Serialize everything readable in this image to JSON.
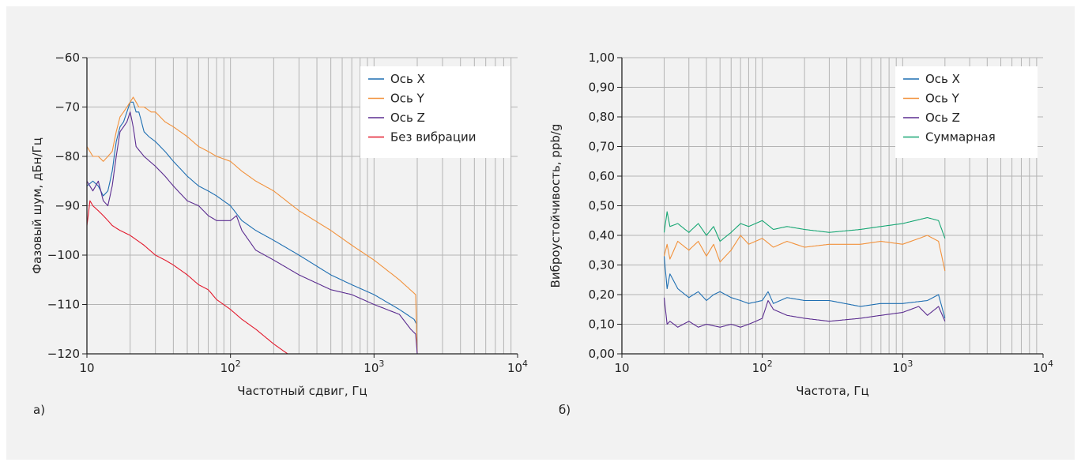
{
  "colors": {
    "x": "#1f6fb2",
    "y": "#f2923c",
    "z": "#5b2d90",
    "none": "#e31b2e",
    "sum": "#18a774",
    "grid": "#b4b4b4",
    "axis": "#222222"
  },
  "chart_data": [
    {
      "type": "line",
      "panel_label": "а)",
      "xlabel": "Частотный сдвиг, Гц",
      "ylabel": "Фазовый шум, дБн/Гц",
      "xscale": "log",
      "xlim": [
        10,
        10000
      ],
      "ylim": [
        -120,
        -60
      ],
      "xticks": [
        10,
        100,
        1000,
        10000
      ],
      "xtick_labels": [
        {
          "base": "10",
          "exp": ""
        },
        {
          "base": "10",
          "exp": "2"
        },
        {
          "base": "10",
          "exp": "3"
        },
        {
          "base": "10",
          "exp": "4"
        }
      ],
      "yticks": [
        -60,
        -70,
        -80,
        -90,
        -100,
        -110,
        -120
      ],
      "ytick_labels": [
        "−60",
        "−70",
        "−80",
        "−90",
        "−100",
        "−110",
        "−120"
      ],
      "grid": true,
      "legend_position": "top-right",
      "series": [
        {
          "name": "Ось X",
          "color_key": "x",
          "x": [
            10,
            11,
            12,
            13,
            14,
            15,
            16,
            17,
            18,
            19,
            20,
            21,
            22,
            23,
            24,
            25,
            27,
            30,
            35,
            40,
            50,
            60,
            70,
            80,
            100,
            120,
            150,
            200,
            300,
            500,
            700,
            1000,
            1500,
            1900,
            1980,
            2000
          ],
          "y": [
            -86,
            -85,
            -86,
            -88,
            -87,
            -83,
            -77,
            -74,
            -73,
            -71,
            -69,
            -69,
            -71,
            -71,
            -73,
            -75,
            -76,
            -77,
            -79,
            -81,
            -84,
            -86,
            -87,
            -88,
            -90,
            -93,
            -95,
            -97,
            -100,
            -104,
            -106,
            -108,
            -111,
            -113,
            -114,
            -120
          ]
        },
        {
          "name": "Ось Y",
          "color_key": "y",
          "x": [
            10,
            11,
            12,
            13,
            14,
            15,
            16,
            17,
            18,
            19,
            20,
            21,
            22,
            23,
            25,
            28,
            30,
            35,
            40,
            50,
            60,
            70,
            80,
            100,
            120,
            150,
            200,
            300,
            500,
            700,
            1000,
            1500,
            1950,
            2000
          ],
          "y": [
            -78,
            -80,
            -80,
            -81,
            -80,
            -79,
            -75,
            -72,
            -71,
            -70,
            -69,
            -68,
            -69,
            -70,
            -70,
            -71,
            -71,
            -73,
            -74,
            -76,
            -78,
            -79,
            -80,
            -81,
            -83,
            -85,
            -87,
            -91,
            -95,
            -98,
            -101,
            -105,
            -108,
            -120
          ]
        },
        {
          "name": "Ось Z",
          "color_key": "z",
          "x": [
            10,
            11,
            12,
            13,
            14,
            15,
            16,
            17,
            18,
            19,
            20,
            21,
            22,
            25,
            30,
            35,
            40,
            50,
            60,
            70,
            80,
            100,
            110,
            120,
            150,
            200,
            300,
            500,
            700,
            1000,
            1500,
            1800,
            1950,
            2000
          ],
          "y": [
            -85,
            -87,
            -85,
            -89,
            -90,
            -86,
            -80,
            -75,
            -74,
            -73,
            -71,
            -74,
            -78,
            -80,
            -82,
            -84,
            -86,
            -89,
            -90,
            -92,
            -93,
            -93,
            -92,
            -95,
            -99,
            -101,
            -104,
            -107,
            -108,
            -110,
            -112,
            -115,
            -116,
            -120
          ]
        },
        {
          "name": "Без вибрации",
          "color_key": "none",
          "x": [
            10,
            10.5,
            11,
            12,
            13,
            14,
            15,
            17,
            20,
            25,
            30,
            35,
            40,
            50,
            60,
            70,
            80,
            100,
            120,
            150,
            200,
            250
          ],
          "y": [
            -94,
            -89,
            -90,
            -91,
            -92,
            -93,
            -94,
            -95,
            -96,
            -98,
            -100,
            -101,
            -102,
            -104,
            -106,
            -107,
            -109,
            -111,
            -113,
            -115,
            -118,
            -120
          ]
        }
      ]
    },
    {
      "type": "line",
      "panel_label": "б)",
      "xlabel": "Частота, Гц",
      "ylabel": "Виброустойчивость, ppb/g",
      "xscale": "log",
      "xlim": [
        10,
        10000
      ],
      "ylim": [
        0,
        1
      ],
      "xticks": [
        10,
        100,
        1000,
        10000
      ],
      "xtick_labels": [
        {
          "base": "10",
          "exp": ""
        },
        {
          "base": "10",
          "exp": "2"
        },
        {
          "base": "10",
          "exp": "3"
        },
        {
          "base": "10",
          "exp": "4"
        }
      ],
      "yticks": [
        0,
        0.1,
        0.2,
        0.3,
        0.4,
        0.5,
        0.6,
        0.7,
        0.8,
        0.9,
        1.0
      ],
      "ytick_labels": [
        "0,00",
        "0,10",
        "0,20",
        "0,30",
        "0,40",
        "0,50",
        "0,60",
        "0,70",
        "0,80",
        "0,90",
        "1,00"
      ],
      "grid": true,
      "legend_position": "top-right",
      "series": [
        {
          "name": "Ось X",
          "color_key": "x",
          "x": [
            20,
            21,
            22,
            25,
            30,
            35,
            40,
            45,
            50,
            60,
            70,
            80,
            100,
            110,
            120,
            150,
            200,
            300,
            500,
            700,
            1000,
            1500,
            1800,
            2000
          ],
          "y": [
            0.33,
            0.22,
            0.27,
            0.22,
            0.19,
            0.21,
            0.18,
            0.2,
            0.21,
            0.19,
            0.18,
            0.17,
            0.18,
            0.21,
            0.17,
            0.19,
            0.18,
            0.18,
            0.16,
            0.17,
            0.17,
            0.18,
            0.2,
            0.12
          ]
        },
        {
          "name": "Ось Y",
          "color_key": "y",
          "x": [
            20,
            21,
            22,
            25,
            30,
            35,
            40,
            45,
            50,
            60,
            70,
            80,
            100,
            120,
            150,
            200,
            300,
            500,
            700,
            1000,
            1500,
            1800,
            2000
          ],
          "y": [
            0.33,
            0.37,
            0.32,
            0.38,
            0.35,
            0.38,
            0.33,
            0.37,
            0.31,
            0.35,
            0.4,
            0.37,
            0.39,
            0.36,
            0.38,
            0.36,
            0.37,
            0.37,
            0.38,
            0.37,
            0.4,
            0.38,
            0.28
          ]
        },
        {
          "name": "Ось Z",
          "color_key": "z",
          "x": [
            20,
            21,
            22,
            25,
            30,
            35,
            40,
            50,
            60,
            70,
            80,
            90,
            100,
            110,
            120,
            150,
            200,
            300,
            500,
            700,
            1000,
            1300,
            1500,
            1800,
            2000
          ],
          "y": [
            0.19,
            0.1,
            0.11,
            0.09,
            0.11,
            0.09,
            0.1,
            0.09,
            0.1,
            0.09,
            0.1,
            0.11,
            0.12,
            0.18,
            0.15,
            0.13,
            0.12,
            0.11,
            0.12,
            0.13,
            0.14,
            0.16,
            0.13,
            0.16,
            0.11
          ]
        },
        {
          "name": "Суммарная",
          "color_key": "sum",
          "x": [
            20,
            21,
            22,
            25,
            30,
            35,
            40,
            45,
            50,
            60,
            70,
            80,
            100,
            120,
            150,
            200,
            300,
            500,
            700,
            1000,
            1500,
            1800,
            2000
          ],
          "y": [
            0.41,
            0.48,
            0.43,
            0.44,
            0.41,
            0.44,
            0.4,
            0.43,
            0.38,
            0.41,
            0.44,
            0.43,
            0.45,
            0.42,
            0.43,
            0.42,
            0.41,
            0.42,
            0.43,
            0.44,
            0.46,
            0.45,
            0.39
          ]
        }
      ]
    }
  ]
}
